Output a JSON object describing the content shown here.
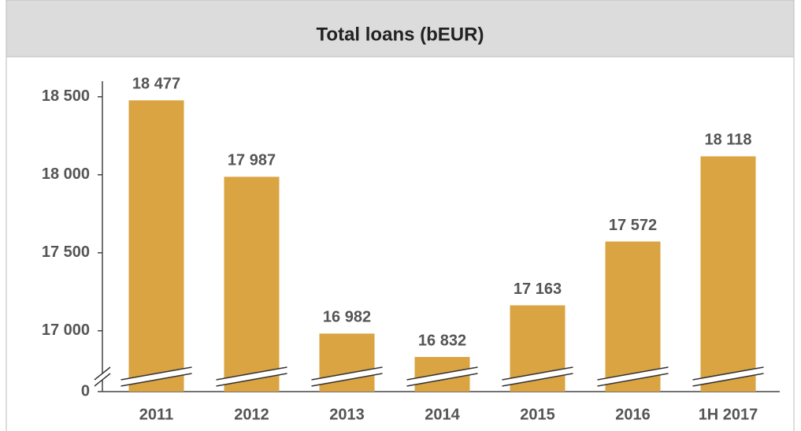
{
  "chart_data": {
    "type": "bar",
    "title": "Total loans (bEUR)",
    "categories": [
      "2011",
      "2012",
      "2013",
      "2014",
      "2015",
      "2016",
      "1H 2017"
    ],
    "values": [
      18477,
      17987,
      16982,
      16832,
      17163,
      17572,
      18118
    ],
    "value_labels": [
      "18 477",
      "17 987",
      "16 982",
      "16 832",
      "17 163",
      "17 572",
      "18 118"
    ],
    "color": "#d9a441",
    "ylim": [
      16610,
      18600
    ],
    "axis_break": true,
    "yticks": [
      0,
      {
        "value": 17000,
        "label": "17 000"
      },
      {
        "value": 17500,
        "label": "17 500"
      },
      {
        "value": 18000,
        "label": "18 000"
      },
      {
        "value": 18500,
        "label": "18 500"
      }
    ],
    "grid": false
  }
}
